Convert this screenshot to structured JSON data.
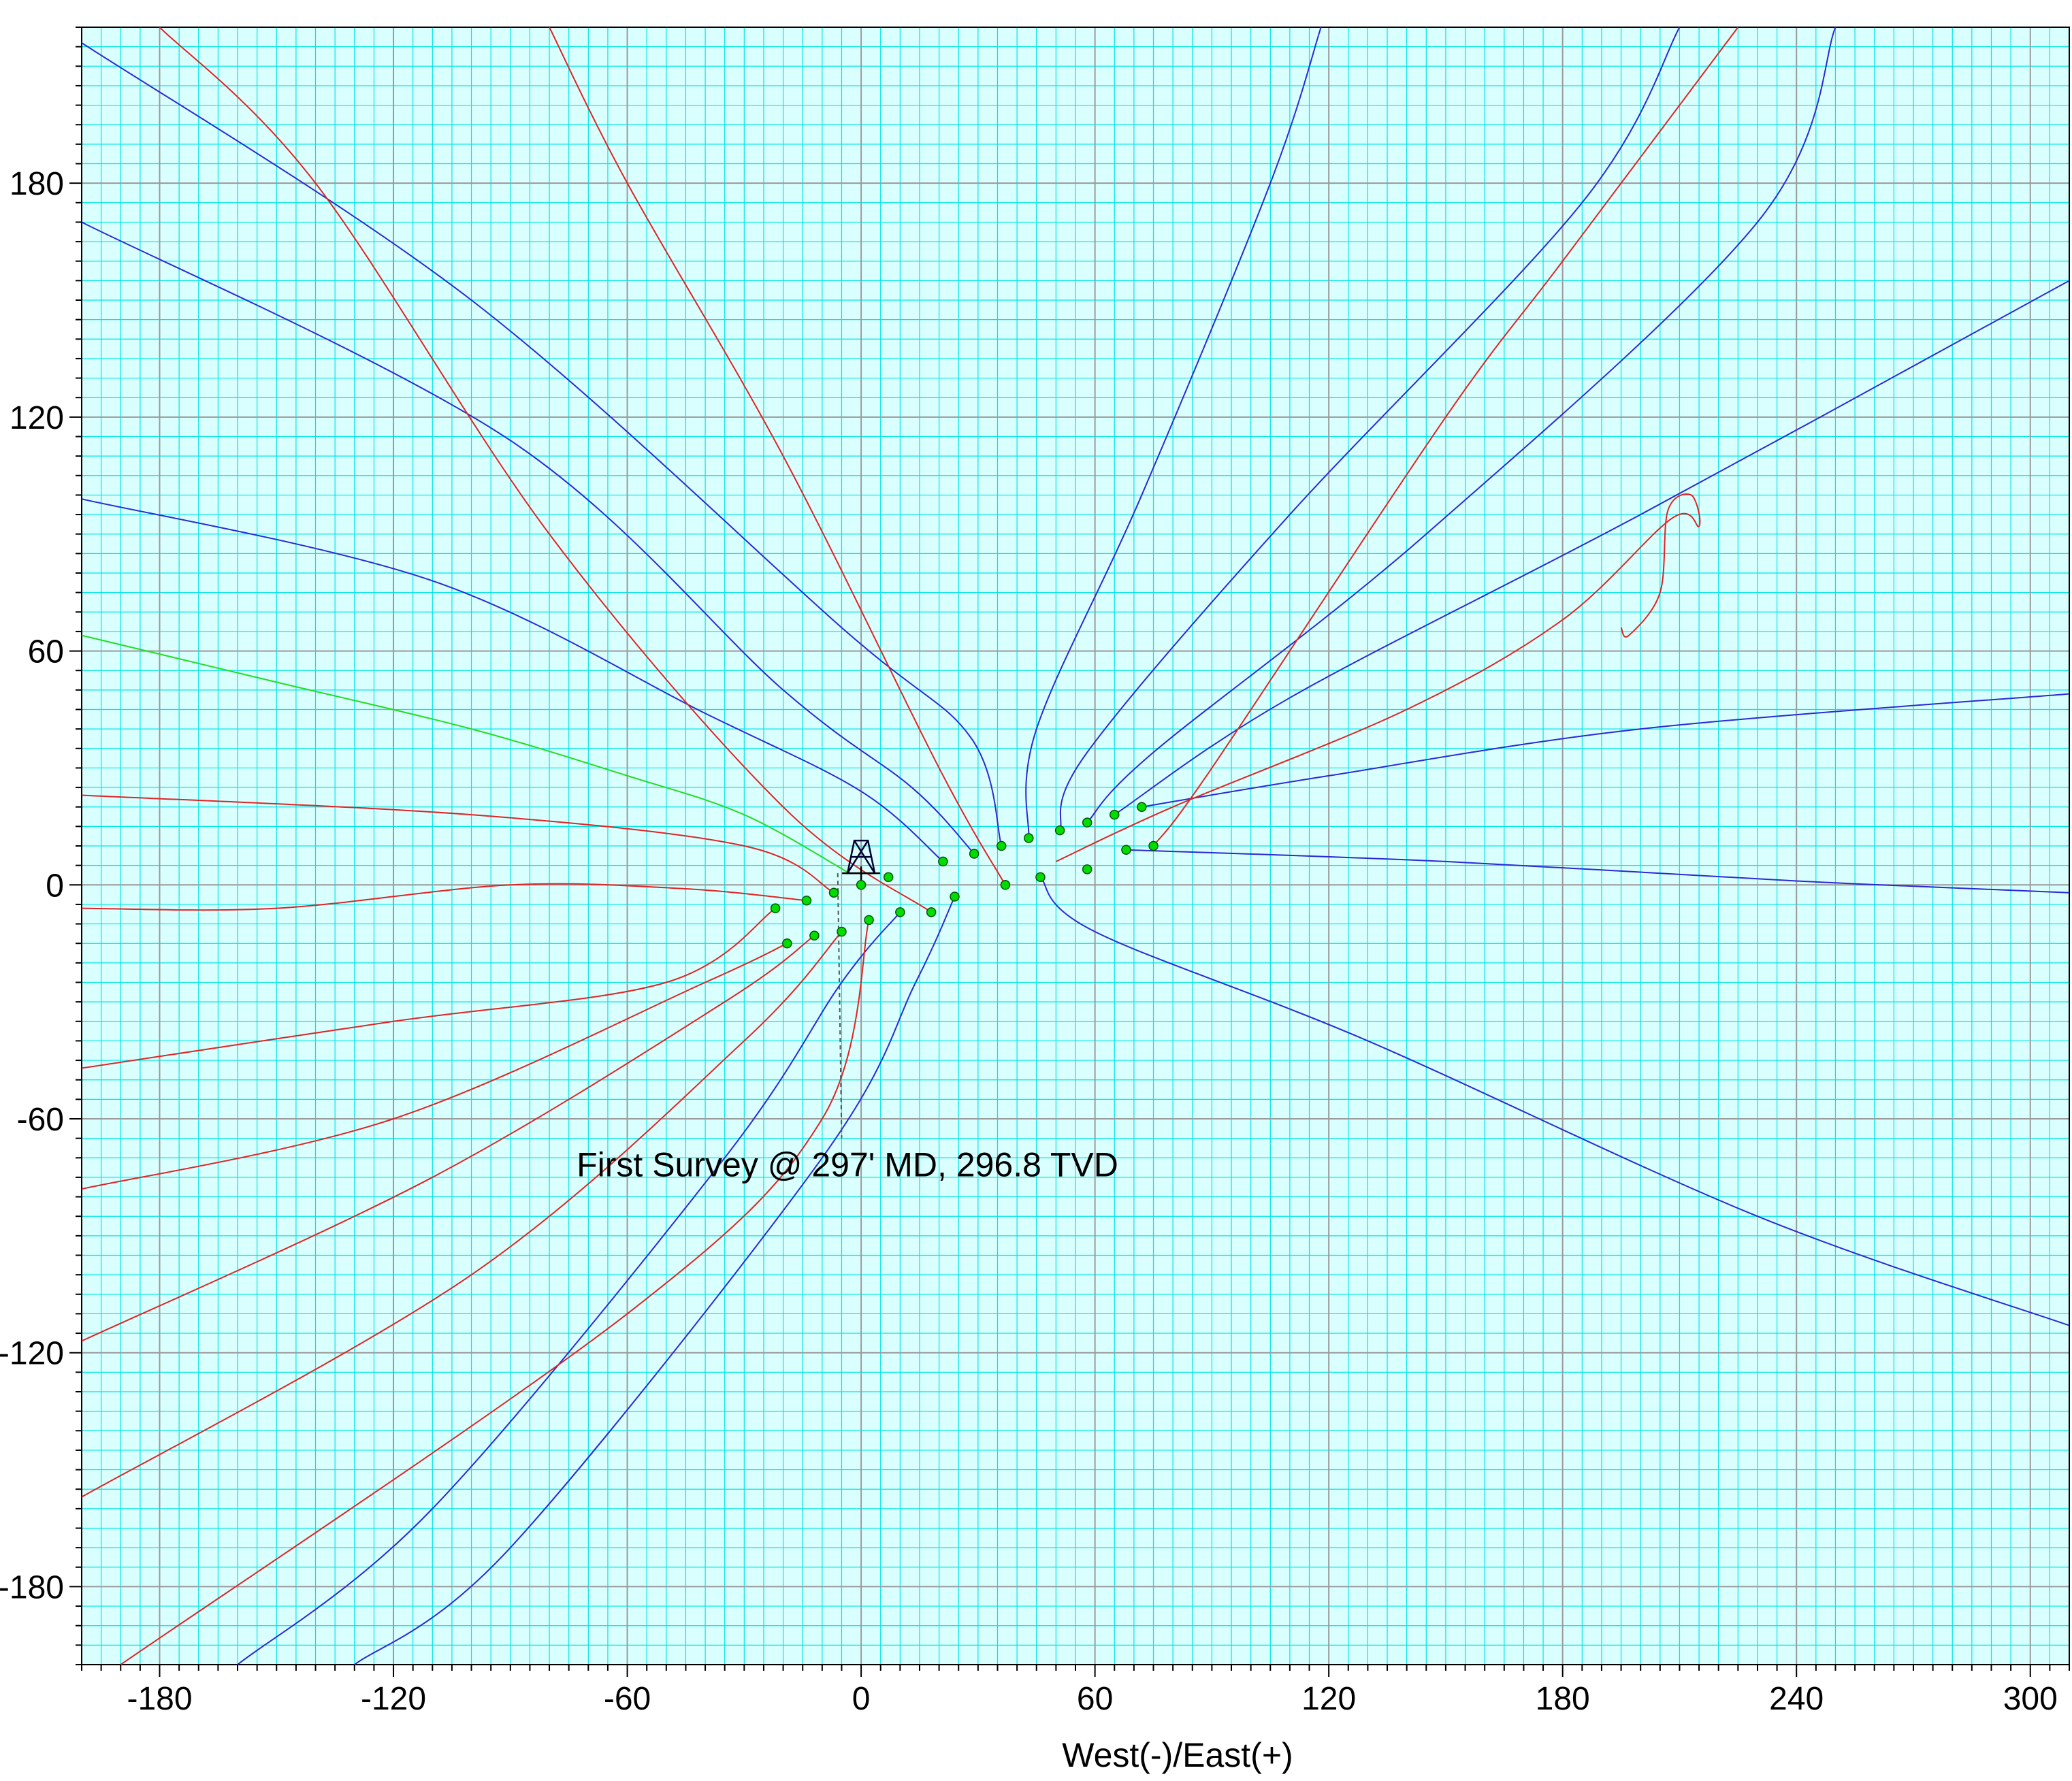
{
  "chart_data": {
    "type": "line",
    "title": "",
    "xlabel": "West(-)/East(+)",
    "ylabel": "",
    "xlim": [
      -200,
      310
    ],
    "ylim": [
      -200,
      220
    ],
    "x_ticks": [
      -180,
      -120,
      -60,
      0,
      60,
      120,
      180,
      240,
      300
    ],
    "y_ticks": [
      180,
      120,
      60,
      0,
      -60,
      -120,
      -180
    ],
    "x_tick_labels": [
      "-180",
      "-120",
      "-60",
      "0",
      "60",
      "120",
      "180",
      "240",
      "300"
    ],
    "y_tick_labels": [
      "180",
      "120",
      "60",
      "0",
      "-60",
      "-120",
      "-180"
    ],
    "grid": {
      "major_step": 60,
      "minor_step": 5,
      "major_color": "#9a9a9a",
      "minor_color": "#00e5e5"
    },
    "background": "#d9ffff",
    "series_colors": {
      "plan": "#2a2ad6",
      "actual": "#e02424",
      "subject": "#22dd22",
      "survey_marker": "#00dd00"
    },
    "annotation": {
      "text": "First Survey @ 297' MD, 296.8 TVD",
      "x": -73,
      "y": -72
    },
    "survey_line": [
      [
        -6,
        3
      ],
      [
        -5,
        -65
      ]
    ],
    "rig": {
      "x": 0,
      "y": 3
    },
    "subject_well": [
      [
        -3,
        3
      ],
      [
        -30,
        18
      ],
      [
        -60,
        28
      ],
      [
        -100,
        40
      ],
      [
        -150,
        52
      ],
      [
        -200,
        64
      ]
    ],
    "blue_wells": [
      [
        [
          21,
          6
        ],
        [
          0,
          24
        ],
        [
          -40,
          44
        ],
        [
          -110,
          78
        ],
        [
          -200,
          99
        ]
      ],
      [
        [
          29,
          8
        ],
        [
          13,
          25
        ],
        [
          -20,
          50
        ],
        [
          -90,
          114
        ],
        [
          -200,
          170
        ]
      ],
      [
        [
          36,
          10
        ],
        [
          28,
          38
        ],
        [
          -5,
          66
        ],
        [
          -100,
          150
        ],
        [
          -200,
          216
        ]
      ],
      [
        [
          43,
          12
        ],
        [
          45,
          40
        ],
        [
          72,
          100
        ],
        [
          105,
          180
        ],
        [
          118,
          220
        ]
      ],
      [
        [
          51,
          14
        ],
        [
          58,
          34
        ],
        [
          110,
          95
        ],
        [
          185,
          175
        ],
        [
          210,
          220
        ]
      ],
      [
        [
          58,
          16
        ],
        [
          75,
          34
        ],
        [
          145,
          90
        ],
        [
          230,
          170
        ],
        [
          250,
          220
        ]
      ],
      [
        [
          65,
          18
        ],
        [
          110,
          48
        ],
        [
          200,
          95
        ],
        [
          310,
          155
        ]
      ],
      [
        [
          72,
          20
        ],
        [
          120,
          28
        ],
        [
          200,
          40
        ],
        [
          310,
          49
        ]
      ],
      [
        [
          68,
          9
        ],
        [
          150,
          6
        ],
        [
          240,
          1
        ],
        [
          310,
          -2
        ]
      ],
      [
        [
          46,
          2
        ],
        [
          60,
          -12
        ],
        [
          130,
          -40
        ],
        [
          230,
          -85
        ],
        [
          310,
          -113
        ]
      ],
      [
        [
          24,
          -3
        ],
        [
          14,
          -25
        ],
        [
          -10,
          -70
        ],
        [
          -90,
          -170
        ],
        [
          -130,
          -200
        ]
      ],
      [
        [
          10,
          -7
        ],
        [
          -5,
          -25
        ],
        [
          -35,
          -70
        ],
        [
          -110,
          -160
        ],
        [
          -160,
          -200
        ]
      ]
    ],
    "red_wells": [
      [
        [
          -7,
          -2
        ],
        [
          -30,
          10
        ],
        [
          -100,
          18
        ],
        [
          -200,
          23
        ]
      ],
      [
        [
          -14,
          -4
        ],
        [
          -45,
          -1
        ],
        [
          -90,
          0
        ],
        [
          -150,
          -6
        ],
        [
          -200,
          -6
        ]
      ],
      [
        [
          -22,
          -6
        ],
        [
          -50,
          -25
        ],
        [
          -120,
          -35
        ],
        [
          -200,
          -47
        ]
      ],
      [
        [
          -19,
          -15
        ],
        [
          -40,
          -25
        ],
        [
          -120,
          -60
        ],
        [
          -200,
          -78
        ]
      ],
      [
        [
          -12,
          -13
        ],
        [
          -35,
          -30
        ],
        [
          -110,
          -75
        ],
        [
          -200,
          -117
        ]
      ],
      [
        [
          -5,
          -12
        ],
        [
          -30,
          -40
        ],
        [
          -100,
          -100
        ],
        [
          -200,
          -157
        ]
      ],
      [
        [
          2,
          -9
        ],
        [
          -10,
          -60
        ],
        [
          -60,
          -110
        ],
        [
          -190,
          -200
        ]
      ],
      [
        [
          18,
          -7
        ],
        [
          -20,
          20
        ],
        [
          -80,
          90
        ],
        [
          -140,
          180
        ],
        [
          -180,
          220
        ]
      ],
      [
        [
          37,
          0
        ],
        [
          20,
          30
        ],
        [
          -20,
          110
        ],
        [
          -60,
          180
        ],
        [
          -80,
          220
        ]
      ],
      [
        [
          75,
          10
        ],
        [
          90,
          30
        ],
        [
          150,
          120
        ],
        [
          180,
          160
        ],
        [
          225,
          220
        ]
      ],
      [
        [
          50,
          6
        ],
        [
          80,
          20
        ],
        [
          140,
          45
        ],
        [
          180,
          68
        ],
        [
          208,
          94
        ],
        [
          215,
          92
        ],
        [
          213,
          100
        ],
        [
          207,
          96
        ],
        [
          205,
          75
        ],
        [
          197,
          64
        ],
        [
          195,
          66
        ]
      ]
    ],
    "survey_points": [
      [
        7,
        2
      ],
      [
        0,
        0
      ],
      [
        -7,
        -2
      ],
      [
        -14,
        -4
      ],
      [
        -22,
        -6
      ],
      [
        -19,
        -15
      ],
      [
        -12,
        -13
      ],
      [
        -5,
        -12
      ],
      [
        2,
        -9
      ],
      [
        10,
        -7
      ],
      [
        18,
        -7
      ],
      [
        24,
        -3
      ],
      [
        21,
        6
      ],
      [
        29,
        8
      ],
      [
        36,
        10
      ],
      [
        43,
        12
      ],
      [
        51,
        14
      ],
      [
        58,
        16
      ],
      [
        65,
        18
      ],
      [
        72,
        20
      ],
      [
        68,
        9
      ],
      [
        58,
        4
      ],
      [
        46,
        2
      ],
      [
        37,
        0
      ],
      [
        75,
        10
      ]
    ]
  }
}
